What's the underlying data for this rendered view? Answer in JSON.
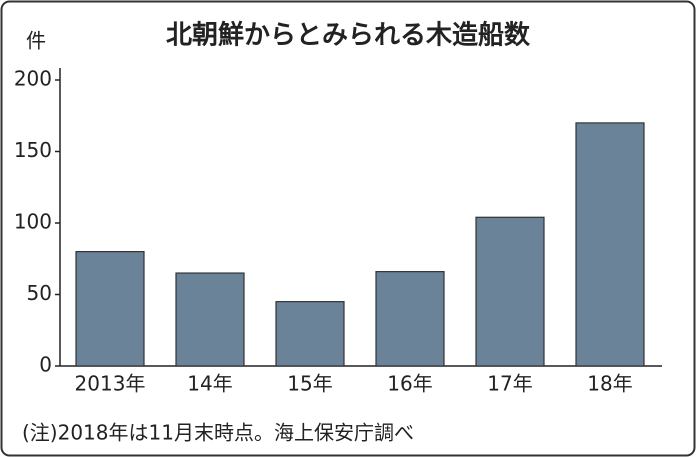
{
  "chart_data": {
    "type": "bar",
    "title": "北朝鮮からとみられる木造船数",
    "y_label": "件",
    "categories": [
      "2013年",
      "14年",
      "15年",
      "16年",
      "17年",
      "18年"
    ],
    "values": [
      80,
      65,
      45,
      66,
      104,
      170
    ],
    "color": "#6b8399",
    "ylim": [
      0,
      200
    ],
    "yticks": [
      0,
      50,
      100,
      150,
      200
    ],
    "grid": false,
    "note": "(注)2018年は11月末時点。海上保安庁調べ"
  }
}
